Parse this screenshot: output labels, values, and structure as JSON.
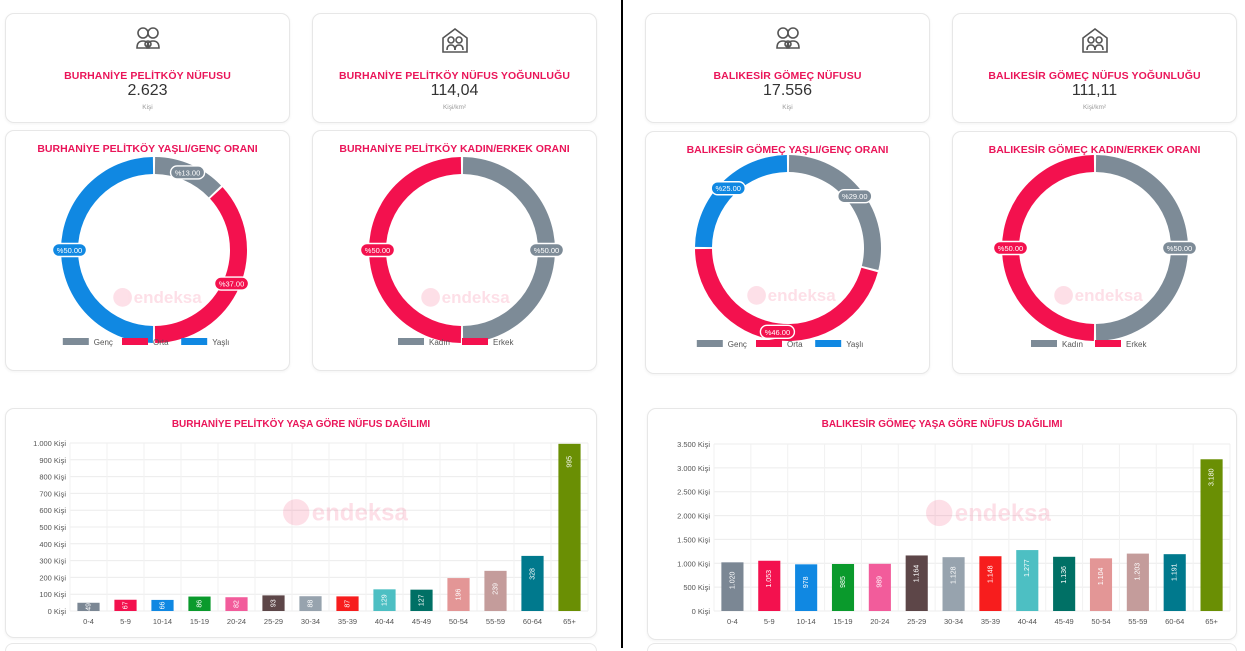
{
  "left": {
    "population": {
      "title": "BURHANİYE PELİTKÖY NÜFUSU",
      "value": "2.623",
      "unit": "Kişi",
      "icon": "family-icon"
    },
    "density": {
      "title": "BURHANİYE PELİTKÖY NÜFUS YOĞUNLUĞU",
      "value": "114,04",
      "unit": "Kişi/km²",
      "icon": "house-family-icon"
    },
    "age_donut": {
      "title": "BURHANİYE PELİTKÖY YAŞLI/GENÇ ORANI"
    },
    "gender_donut": {
      "title": "BURHANİYE PELİTKÖY KADIN/ERKEK ORANI"
    },
    "age_bars": {
      "title": "BURHANİYE PELİTKÖY YAŞA GÖRE NÜFUS DAĞILIMI"
    }
  },
  "right": {
    "population": {
      "title": "BALIKESİR GÖMEÇ NÜFUSU",
      "value": "17.556",
      "unit": "Kişi",
      "icon": "family-icon"
    },
    "density": {
      "title": "BALIKESİR GÖMEÇ NÜFUS YOĞUNLUĞU",
      "value": "111,11",
      "unit": "Kişi/km²",
      "icon": "house-family-icon"
    },
    "age_donut": {
      "title": "BALIKESİR GÖMEÇ YAŞLI/GENÇ ORANI"
    },
    "gender_donut": {
      "title": "BALIKESİR GÖMEÇ KADIN/ERKEK ORANI"
    },
    "age_bars": {
      "title": "BALIKESİR GÖMEÇ YAŞA GÖRE NÜFUS DAĞILIMI"
    }
  },
  "watermark": "endeksa",
  "chart_data": [
    {
      "id": "left-age-donut",
      "type": "pie",
      "title": "BURHANİYE PELİTKÖY YAŞLI/GENÇ ORANI",
      "slices": [
        {
          "name": "Genç",
          "value": 13.0,
          "label": "%13.00",
          "color": "#7d8b97"
        },
        {
          "name": "Orta",
          "value": 37.0,
          "label": "%37.00",
          "color": "#f3114e"
        },
        {
          "name": "Yaşlı",
          "value": 50.0,
          "label": "%50.00",
          "color": "#1088e2"
        }
      ]
    },
    {
      "id": "left-gender-donut",
      "type": "pie",
      "title": "BURHANİYE PELİTKÖY KADIN/ERKEK ORANI",
      "slices": [
        {
          "name": "Kadın",
          "value": 50.0,
          "label": "%50.00",
          "color": "#7d8b97"
        },
        {
          "name": "Erkek",
          "value": 50.0,
          "label": "%50.00",
          "color": "#f3114e"
        }
      ]
    },
    {
      "id": "right-age-donut",
      "type": "pie",
      "title": "BALIKESİR GÖMEÇ YAŞLI/GENÇ ORANI",
      "slices": [
        {
          "name": "Genç",
          "value": 29.0,
          "label": "%29.00",
          "color": "#7d8b97"
        },
        {
          "name": "Orta",
          "value": 46.0,
          "label": "%46.00",
          "color": "#f3114e"
        },
        {
          "name": "Yaşlı",
          "value": 25.0,
          "label": "%25.00",
          "color": "#1088e2"
        }
      ]
    },
    {
      "id": "right-gender-donut",
      "type": "pie",
      "title": "BALIKESİR GÖMEÇ KADIN/ERKEK ORANI",
      "slices": [
        {
          "name": "Kadın",
          "value": 50.0,
          "label": "%50.00",
          "color": "#7d8b97"
        },
        {
          "name": "Erkek",
          "value": 50.0,
          "label": "%50.00",
          "color": "#f3114e"
        }
      ]
    },
    {
      "id": "left-age-bars",
      "type": "bar",
      "title": "BURHANİYE PELİTKÖY YAŞA GÖRE NÜFUS DAĞILIMI",
      "ylim": [
        0,
        1000
      ],
      "ytick_step": 100,
      "ytick_suffix": " Kişi",
      "grid": true,
      "categories": [
        "0-4",
        "5-9",
        "10-14",
        "15-19",
        "20-24",
        "25-29",
        "30-34",
        "35-39",
        "40-44",
        "45-49",
        "50-54",
        "55-59",
        "60-64",
        "65+"
      ],
      "values": [
        49,
        67,
        66,
        86,
        82,
        93,
        88,
        87,
        129,
        127,
        196,
        239,
        328,
        995
      ],
      "labels": [
        "49",
        "67",
        "66",
        "86",
        "82",
        "93",
        "88",
        "87",
        "129",
        "127",
        "196",
        "239",
        "328",
        "995"
      ],
      "colors": [
        "#7b8794",
        "#f3114e",
        "#1088e2",
        "#0a9a2c",
        "#f25c9b",
        "#5d4648",
        "#97a3ae",
        "#f71d1d",
        "#4dbfc3",
        "#007065",
        "#e39696",
        "#c49c9b",
        "#00798d",
        "#6a8f04"
      ]
    },
    {
      "id": "right-age-bars",
      "type": "bar",
      "title": "BALIKESİR GÖMEÇ YAŞA GÖRE NÜFUS DAĞILIMI",
      "ylim": [
        0,
        3500
      ],
      "ytick_step": 500,
      "ytick_suffix": " Kişi",
      "grid": true,
      "categories": [
        "0-4",
        "5-9",
        "10-14",
        "15-19",
        "20-24",
        "25-29",
        "30-34",
        "35-39",
        "40-44",
        "45-49",
        "50-54",
        "55-59",
        "60-64",
        "65+"
      ],
      "values": [
        1020,
        1053,
        978,
        985,
        989,
        1164,
        1128,
        1148,
        1277,
        1136,
        1104,
        1203,
        1191,
        3180
      ],
      "labels": [
        "1.020",
        "1.053",
        "978",
        "985",
        "989",
        "1.164",
        "1.128",
        "1.148",
        "1.277",
        "1.136",
        "1.104",
        "1.203",
        "1.191",
        "3.180"
      ],
      "colors": [
        "#7b8794",
        "#f3114e",
        "#1088e2",
        "#0a9a2c",
        "#f25c9b",
        "#5d4648",
        "#97a3ae",
        "#f71d1d",
        "#4dbfc3",
        "#007065",
        "#e39696",
        "#c49c9b",
        "#00798d",
        "#6a8f04"
      ]
    }
  ]
}
